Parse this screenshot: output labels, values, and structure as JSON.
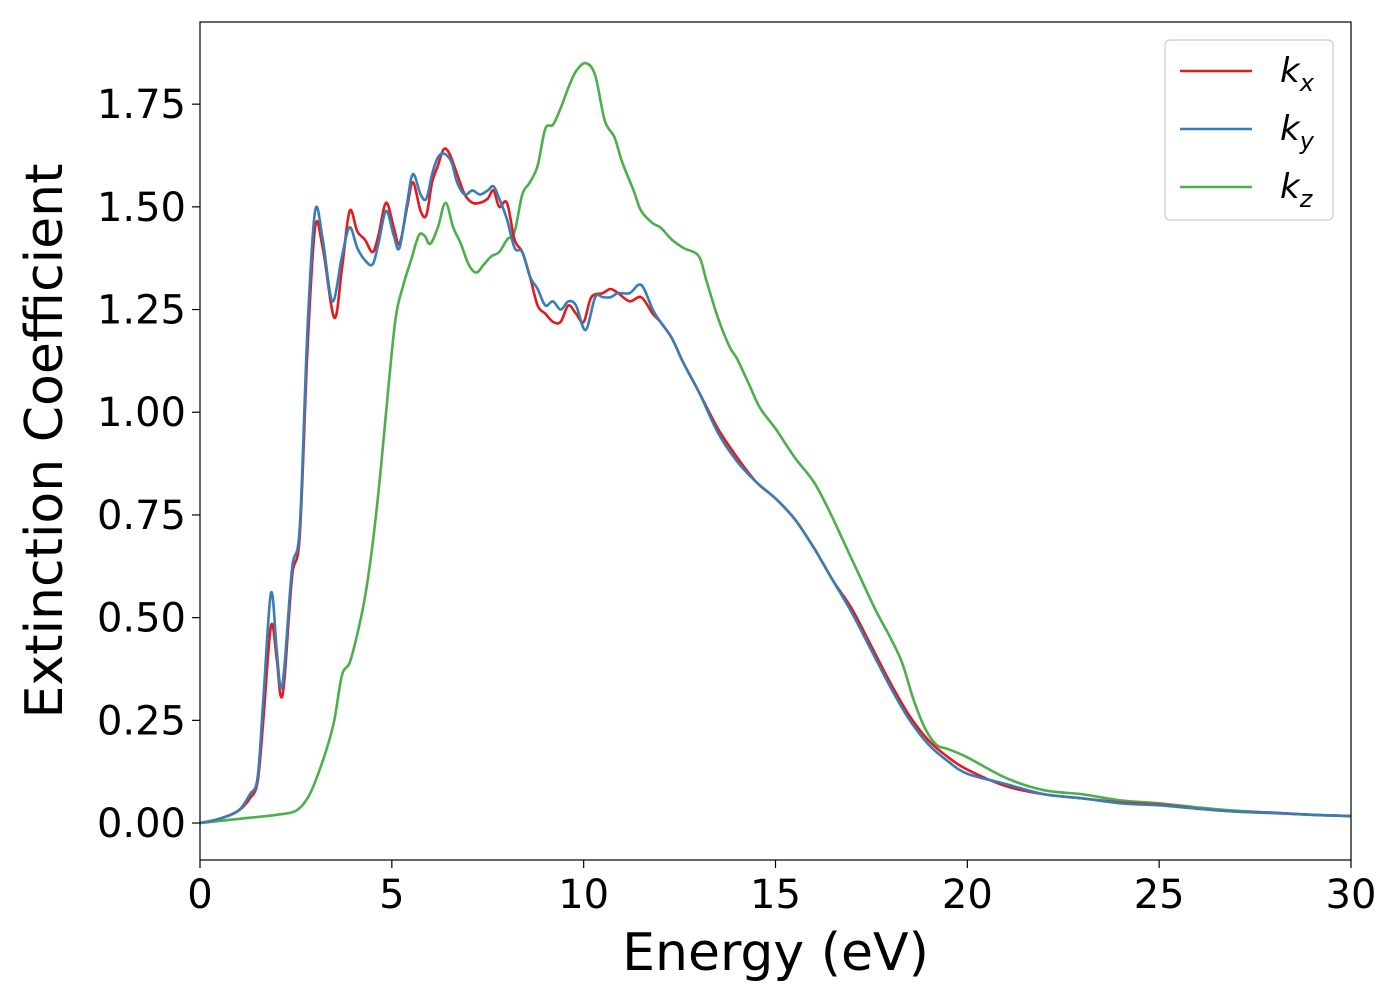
{
  "chart_data": {
    "type": "line",
    "xlabel": "Energy (eV)",
    "ylabel": "Extinction Coefficient",
    "xlim": [
      0,
      30
    ],
    "ylim": [
      -0.09,
      1.95
    ],
    "x_ticks": [
      0,
      5,
      10,
      15,
      20,
      25,
      30
    ],
    "x_tick_labels": [
      "0",
      "5",
      "10",
      "15",
      "20",
      "25",
      "30"
    ],
    "y_ticks": [
      0,
      0.25,
      0.5,
      0.75,
      1.0,
      1.25,
      1.5,
      1.75
    ],
    "y_tick_labels": [
      "0.00",
      "0.25",
      "0.50",
      "0.75",
      "1.00",
      "1.25",
      "1.50",
      "1.75"
    ],
    "grid": false,
    "legend_position": "top-right",
    "series": [
      {
        "name": "k",
        "subscript": "x",
        "color": "#e41a1c",
        "points": [
          [
            0,
            0
          ],
          [
            0.5,
            0.01
          ],
          [
            1.0,
            0.03
          ],
          [
            1.3,
            0.06
          ],
          [
            1.5,
            0.1
          ],
          [
            1.65,
            0.25
          ],
          [
            1.85,
            0.48
          ],
          [
            2.0,
            0.4
          ],
          [
            2.1,
            0.31
          ],
          [
            2.2,
            0.35
          ],
          [
            2.4,
            0.6
          ],
          [
            2.6,
            0.7
          ],
          [
            2.8,
            1.15
          ],
          [
            3.0,
            1.45
          ],
          [
            3.2,
            1.4
          ],
          [
            3.5,
            1.23
          ],
          [
            3.7,
            1.35
          ],
          [
            3.9,
            1.49
          ],
          [
            4.1,
            1.44
          ],
          [
            4.3,
            1.42
          ],
          [
            4.5,
            1.39
          ],
          [
            4.65,
            1.43
          ],
          [
            4.85,
            1.51
          ],
          [
            5.05,
            1.45
          ],
          [
            5.2,
            1.41
          ],
          [
            5.4,
            1.5
          ],
          [
            5.55,
            1.56
          ],
          [
            5.75,
            1.49
          ],
          [
            5.9,
            1.48
          ],
          [
            6.05,
            1.56
          ],
          [
            6.2,
            1.6
          ],
          [
            6.35,
            1.64
          ],
          [
            6.5,
            1.63
          ],
          [
            6.7,
            1.58
          ],
          [
            6.9,
            1.53
          ],
          [
            7.1,
            1.51
          ],
          [
            7.3,
            1.51
          ],
          [
            7.5,
            1.52
          ],
          [
            7.65,
            1.54
          ],
          [
            7.8,
            1.5
          ],
          [
            8.0,
            1.51
          ],
          [
            8.2,
            1.42
          ],
          [
            8.4,
            1.39
          ],
          [
            8.6,
            1.33
          ],
          [
            8.8,
            1.26
          ],
          [
            9.0,
            1.24
          ],
          [
            9.2,
            1.22
          ],
          [
            9.4,
            1.22
          ],
          [
            9.6,
            1.26
          ],
          [
            9.8,
            1.24
          ],
          [
            10.0,
            1.22
          ],
          [
            10.2,
            1.28
          ],
          [
            10.5,
            1.29
          ],
          [
            10.7,
            1.3
          ],
          [
            10.9,
            1.29
          ],
          [
            11.2,
            1.27
          ],
          [
            11.5,
            1.28
          ],
          [
            11.8,
            1.24
          ],
          [
            12.0,
            1.22
          ],
          [
            12.3,
            1.18
          ],
          [
            12.6,
            1.12
          ],
          [
            13.0,
            1.05
          ],
          [
            13.5,
            0.96
          ],
          [
            14.0,
            0.89
          ],
          [
            14.5,
            0.83
          ],
          [
            15.0,
            0.79
          ],
          [
            15.5,
            0.74
          ],
          [
            16.0,
            0.67
          ],
          [
            16.5,
            0.59
          ],
          [
            17.0,
            0.52
          ],
          [
            17.5,
            0.43
          ],
          [
            18.0,
            0.34
          ],
          [
            18.5,
            0.26
          ],
          [
            19.0,
            0.2
          ],
          [
            19.5,
            0.16
          ],
          [
            20.0,
            0.13
          ],
          [
            21.0,
            0.09
          ],
          [
            22.0,
            0.07
          ],
          [
            23.0,
            0.06
          ],
          [
            24.0,
            0.05
          ],
          [
            25.0,
            0.045
          ],
          [
            26.0,
            0.035
          ],
          [
            27.0,
            0.028
          ],
          [
            28.0,
            0.025
          ],
          [
            29.0,
            0.02
          ],
          [
            30.0,
            0.017
          ]
        ]
      },
      {
        "name": "k",
        "subscript": "y",
        "color": "#377eb8",
        "points": [
          [
            0,
            0
          ],
          [
            0.5,
            0.01
          ],
          [
            1.0,
            0.03
          ],
          [
            1.3,
            0.07
          ],
          [
            1.5,
            0.11
          ],
          [
            1.65,
            0.3
          ],
          [
            1.85,
            0.56
          ],
          [
            2.0,
            0.42
          ],
          [
            2.1,
            0.33
          ],
          [
            2.2,
            0.38
          ],
          [
            2.4,
            0.62
          ],
          [
            2.6,
            0.72
          ],
          [
            2.8,
            1.2
          ],
          [
            3.0,
            1.49
          ],
          [
            3.2,
            1.42
          ],
          [
            3.45,
            1.27
          ],
          [
            3.7,
            1.38
          ],
          [
            3.9,
            1.45
          ],
          [
            4.1,
            1.4
          ],
          [
            4.3,
            1.37
          ],
          [
            4.5,
            1.36
          ],
          [
            4.65,
            1.41
          ],
          [
            4.85,
            1.49
          ],
          [
            5.05,
            1.43
          ],
          [
            5.2,
            1.4
          ],
          [
            5.4,
            1.51
          ],
          [
            5.55,
            1.58
          ],
          [
            5.75,
            1.53
          ],
          [
            5.9,
            1.52
          ],
          [
            6.05,
            1.58
          ],
          [
            6.2,
            1.62
          ],
          [
            6.35,
            1.63
          ],
          [
            6.55,
            1.61
          ],
          [
            6.7,
            1.56
          ],
          [
            6.9,
            1.53
          ],
          [
            7.1,
            1.54
          ],
          [
            7.3,
            1.53
          ],
          [
            7.5,
            1.54
          ],
          [
            7.65,
            1.55
          ],
          [
            7.8,
            1.52
          ],
          [
            8.0,
            1.47
          ],
          [
            8.2,
            1.4
          ],
          [
            8.4,
            1.39
          ],
          [
            8.6,
            1.33
          ],
          [
            8.8,
            1.3
          ],
          [
            9.0,
            1.26
          ],
          [
            9.2,
            1.27
          ],
          [
            9.4,
            1.25
          ],
          [
            9.6,
            1.27
          ],
          [
            9.8,
            1.26
          ],
          [
            10.05,
            1.2
          ],
          [
            10.3,
            1.28
          ],
          [
            10.5,
            1.28
          ],
          [
            10.7,
            1.28
          ],
          [
            10.9,
            1.29
          ],
          [
            11.2,
            1.29
          ],
          [
            11.5,
            1.31
          ],
          [
            11.8,
            1.25
          ],
          [
            12.0,
            1.22
          ],
          [
            12.3,
            1.18
          ],
          [
            12.6,
            1.12
          ],
          [
            13.0,
            1.05
          ],
          [
            13.5,
            0.95
          ],
          [
            14.0,
            0.88
          ],
          [
            14.5,
            0.83
          ],
          [
            15.0,
            0.79
          ],
          [
            15.5,
            0.74
          ],
          [
            16.0,
            0.67
          ],
          [
            16.5,
            0.59
          ],
          [
            17.0,
            0.51
          ],
          [
            17.5,
            0.42
          ],
          [
            18.0,
            0.33
          ],
          [
            18.5,
            0.25
          ],
          [
            19.0,
            0.19
          ],
          [
            19.5,
            0.15
          ],
          [
            20.0,
            0.12
          ],
          [
            21.0,
            0.095
          ],
          [
            22.0,
            0.07
          ],
          [
            23.0,
            0.06
          ],
          [
            24.0,
            0.048
          ],
          [
            25.0,
            0.043
          ],
          [
            26.0,
            0.035
          ],
          [
            27.0,
            0.028
          ],
          [
            28.0,
            0.024
          ],
          [
            29.0,
            0.02
          ],
          [
            30.0,
            0.017
          ]
        ]
      },
      {
        "name": "k",
        "subscript": "z",
        "color": "#4daf4a",
        "points": [
          [
            0,
            0
          ],
          [
            1.0,
            0.01
          ],
          [
            2.0,
            0.02
          ],
          [
            2.5,
            0.03
          ],
          [
            2.8,
            0.06
          ],
          [
            3.0,
            0.1
          ],
          [
            3.3,
            0.18
          ],
          [
            3.5,
            0.25
          ],
          [
            3.7,
            0.36
          ],
          [
            3.9,
            0.39
          ],
          [
            4.1,
            0.46
          ],
          [
            4.3,
            0.55
          ],
          [
            4.5,
            0.68
          ],
          [
            4.7,
            0.85
          ],
          [
            4.9,
            1.05
          ],
          [
            5.1,
            1.23
          ],
          [
            5.3,
            1.31
          ],
          [
            5.5,
            1.37
          ],
          [
            5.7,
            1.43
          ],
          [
            5.85,
            1.43
          ],
          [
            6.0,
            1.41
          ],
          [
            6.2,
            1.45
          ],
          [
            6.4,
            1.51
          ],
          [
            6.6,
            1.45
          ],
          [
            6.8,
            1.41
          ],
          [
            7.0,
            1.36
          ],
          [
            7.2,
            1.34
          ],
          [
            7.4,
            1.36
          ],
          [
            7.6,
            1.38
          ],
          [
            7.8,
            1.39
          ],
          [
            8.0,
            1.42
          ],
          [
            8.2,
            1.44
          ],
          [
            8.4,
            1.53
          ],
          [
            8.6,
            1.56
          ],
          [
            8.8,
            1.6
          ],
          [
            9.0,
            1.69
          ],
          [
            9.2,
            1.7
          ],
          [
            9.4,
            1.74
          ],
          [
            9.6,
            1.79
          ],
          [
            9.8,
            1.83
          ],
          [
            10.05,
            1.85
          ],
          [
            10.3,
            1.82
          ],
          [
            10.55,
            1.71
          ],
          [
            10.8,
            1.67
          ],
          [
            11.0,
            1.61
          ],
          [
            11.3,
            1.54
          ],
          [
            11.5,
            1.49
          ],
          [
            11.8,
            1.46
          ],
          [
            12.0,
            1.45
          ],
          [
            12.3,
            1.42
          ],
          [
            12.6,
            1.4
          ],
          [
            13.0,
            1.38
          ],
          [
            13.2,
            1.32
          ],
          [
            13.5,
            1.23
          ],
          [
            13.8,
            1.16
          ],
          [
            14.0,
            1.13
          ],
          [
            14.3,
            1.07
          ],
          [
            14.6,
            1.01
          ],
          [
            15.0,
            0.96
          ],
          [
            15.5,
            0.89
          ],
          [
            16.0,
            0.83
          ],
          [
            16.4,
            0.76
          ],
          [
            16.8,
            0.68
          ],
          [
            17.2,
            0.6
          ],
          [
            17.6,
            0.52
          ],
          [
            18.0,
            0.45
          ],
          [
            18.3,
            0.39
          ],
          [
            18.6,
            0.3
          ],
          [
            18.9,
            0.23
          ],
          [
            19.2,
            0.19
          ],
          [
            19.5,
            0.18
          ],
          [
            20.0,
            0.16
          ],
          [
            21.0,
            0.11
          ],
          [
            22.0,
            0.08
          ],
          [
            23.0,
            0.07
          ],
          [
            24.0,
            0.055
          ],
          [
            25.0,
            0.048
          ],
          [
            26.0,
            0.038
          ],
          [
            27.0,
            0.03
          ],
          [
            28.0,
            0.025
          ],
          [
            29.0,
            0.02
          ],
          [
            30.0,
            0.017
          ]
        ]
      }
    ]
  }
}
